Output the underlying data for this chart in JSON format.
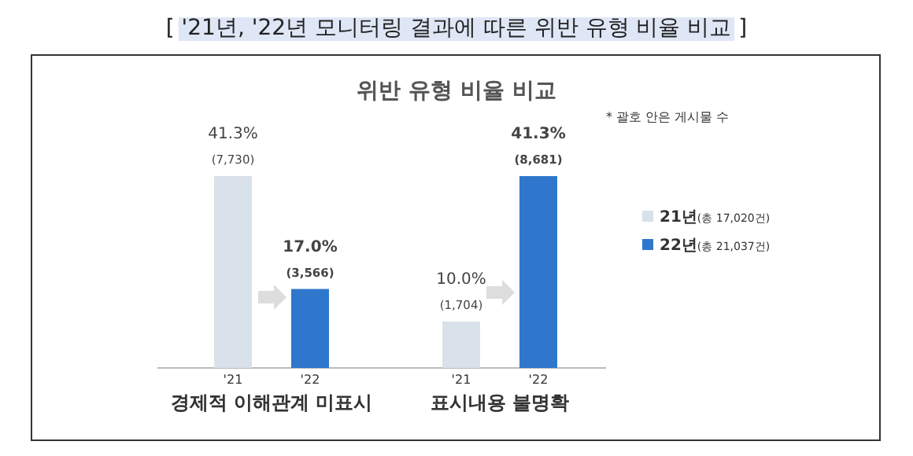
{
  "chart_data": {
    "type": "bar",
    "title": "[ '21년, '22년 모니터링 결과에 따른 위반 유형 비율 비교 ]",
    "subtitle": "위반 유형 비율 비교",
    "categories": [
      "경제적 이해관계 미표시",
      "표시내용 불명확"
    ],
    "series": [
      {
        "name": "**21년**(총 17,020건)",
        "color": "#d9e1ea",
        "values": [
          41.3,
          10.0
        ],
        "value_labels": [
          "41.3%\n(7,730)",
          "10.0%\n(1,704)"
        ]
      },
      {
        "name": "**22년**(총 21,037건)",
        "color": "#2f77cd",
        "values": [
          17.0,
          41.3
        ],
        "value_labels": [
          "17.0%\n(3,566)",
          "41.3%\n(8,681)"
        ]
      }
    ],
    "relative": false,
    "legend": "right",
    "annotations": [
      "* 괄호 안은 게시물 수",
      "'21",
      "'22",
      "'21",
      "'22"
    ]
  }
}
